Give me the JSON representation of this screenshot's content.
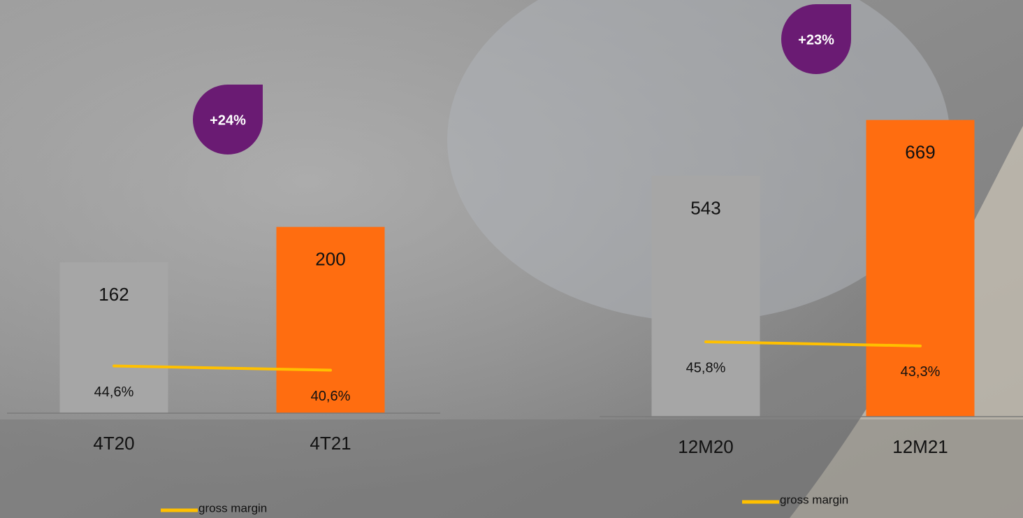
{
  "chart_data": [
    {
      "type": "bar",
      "annotation": "+24%",
      "categories": [
        "4T20",
        "4T21"
      ],
      "series": [
        {
          "type": "bar",
          "colors": [
            "#a6a6a6",
            "#ff6d10"
          ],
          "values": [
            162,
            200
          ]
        },
        {
          "type": "line",
          "name": "gross margin",
          "color": "#ffc000",
          "axis": "y2",
          "values": [
            44.6,
            40.6
          ],
          "value_labels": [
            "44,6%",
            "40,6%"
          ]
        }
      ],
      "ylim": [
        0,
        250
      ],
      "y2lim": [
        0,
        220
      ],
      "legend": "bottom"
    },
    {
      "type": "bar",
      "annotation": "+23%",
      "categories": [
        "12M20",
        "12M21"
      ],
      "series": [
        {
          "type": "bar",
          "colors": [
            "#a6a6a6",
            "#ff6d10"
          ],
          "values": [
            543,
            669
          ]
        },
        {
          "type": "line",
          "name": "gross margin",
          "color": "#ffc000",
          "axis": "y2",
          "values": [
            45.8,
            43.3
          ],
          "value_labels": [
            "45,8%",
            "43,3%"
          ]
        }
      ],
      "ylim": [
        0,
        700
      ],
      "y2lim": [
        0,
        190
      ],
      "legend": "bottom"
    }
  ]
}
